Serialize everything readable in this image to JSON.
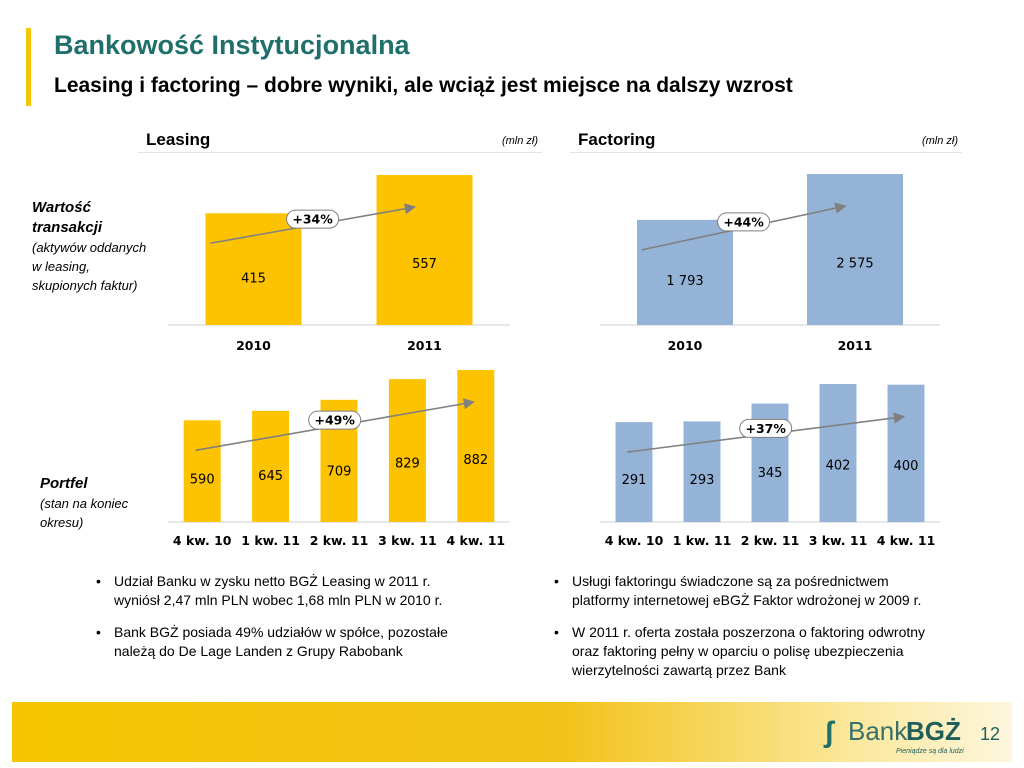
{
  "header": {
    "title": "Bankowość Instytucjonalna",
    "subtitle": "Leasing i factoring – dobre wyniki, ale wciąż jest miejsce na dalszy wzrost"
  },
  "sections": {
    "leasing": {
      "name": "Leasing",
      "unit": "(mln zł)"
    },
    "factoring": {
      "name": "Factoring",
      "unit": "(mln zł)"
    }
  },
  "row_labels": {
    "transactions": {
      "l1": "Wartość",
      "l2": "transakcji",
      "n1": "(aktywów oddanych",
      "n2": "w leasing,",
      "n3": "skupionych faktur)"
    },
    "portfolio": {
      "l1": "Portfel",
      "n1": "(stan na koniec",
      "n2": "okresu)"
    }
  },
  "colors": {
    "leasing": "#fdc300",
    "factoring": "#95b3d7",
    "arrow": "#808080",
    "title": "#1f6f6b",
    "accent": "#f7c600"
  },
  "chart_data": [
    {
      "type": "bar",
      "id": "leasing-transactions",
      "categories": [
        "2010",
        "2011"
      ],
      "values": [
        415,
        557
      ],
      "labels": [
        "415",
        "557"
      ],
      "growth": "+34%"
    },
    {
      "type": "bar",
      "id": "factoring-transactions",
      "categories": [
        "2010",
        "2011"
      ],
      "values": [
        1793,
        2575
      ],
      "labels": [
        "1 793",
        "2 575"
      ],
      "growth": "+44%"
    },
    {
      "type": "bar",
      "id": "leasing-portfolio",
      "categories": [
        "4 kw. 10",
        "1 kw. 11",
        "2 kw. 11",
        "3 kw. 11",
        "4 kw. 11"
      ],
      "values": [
        590,
        645,
        709,
        829,
        882
      ],
      "labels": [
        "590",
        "645",
        "709",
        "829",
        "882"
      ],
      "growth": "+49%"
    },
    {
      "type": "bar",
      "id": "factoring-portfolio",
      "categories": [
        "4 kw. 10",
        "1 kw. 11",
        "2 kw. 11",
        "3 kw. 11",
        "4 kw. 11"
      ],
      "values": [
        291,
        293,
        345,
        402,
        400
      ],
      "labels": [
        "291",
        "293",
        "345",
        "402",
        "400"
      ],
      "growth": "+37%"
    }
  ],
  "bullets": {
    "left": [
      {
        "l1": "Udział Banku w zysku netto BGŻ Leasing w 2011 r.",
        "l2": "wyniósł 2,47 mln PLN wobec 1,68 mln PLN w 2010 r."
      },
      {
        "l1": "Bank BGŻ posiada 49% udziałów w spółce, pozostałe",
        "l2": "należą do De Lage Landen z Grupy Rabobank"
      }
    ],
    "right": [
      {
        "l1": "Usługi faktoringu świadczone są za pośrednictwem",
        "l2": "platformy internetowej eBGŻ Faktor wdrożonej w 2009 r."
      },
      {
        "l1": "W 2011 r. oferta została poszerzona o faktoring odwrotny",
        "l2": "oraz faktoring pełny w oparciu o polisę ubezpieczenia",
        "l3": "wierzytelności zawartą przez Bank"
      }
    ]
  },
  "footer": {
    "logo_bank": "Bank",
    "logo_bgz": "BGŻ",
    "logo_tagline": "Pieniądze są dla ludzi",
    "page_number": "12"
  }
}
